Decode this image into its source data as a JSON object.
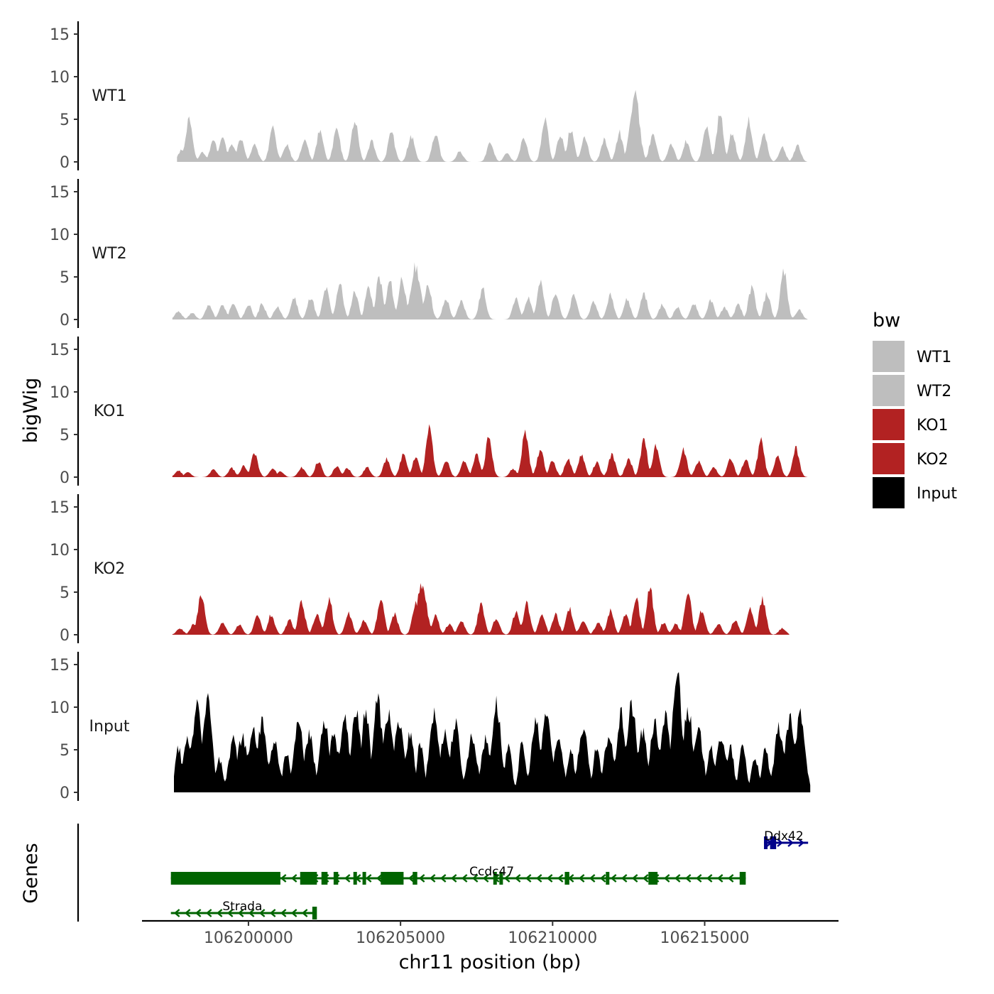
{
  "chart_data": {
    "type": "area",
    "chromosome": "chr11",
    "xlabel": "chr11 position (bp)",
    "ylabel_tracks": "bigWig",
    "ylabel_genes": "Genes",
    "xlim": [
      106196500,
      106219400
    ],
    "x_ticks": [
      106200000,
      106205000,
      106210000,
      106215000
    ],
    "x_tick_labels": [
      "106200000",
      "106205000",
      "106210000",
      "106215000"
    ],
    "ylim": [
      0,
      15.5
    ],
    "y_ticks": [
      0,
      5,
      10,
      15
    ],
    "y_tick_labels": [
      "0",
      "5",
      "10",
      "15"
    ],
    "legend": {
      "title": "bw",
      "entries": [
        {
          "label": "WT1",
          "color": "#bebebe"
        },
        {
          "label": "WT2",
          "color": "#bebebe"
        },
        {
          "label": "KO1",
          "color": "#b22222"
        },
        {
          "label": "KO2",
          "color": "#b22222"
        },
        {
          "label": "Input",
          "color": "#000000"
        }
      ]
    },
    "series": [
      {
        "name": "WT1",
        "color": "#bebebe",
        "start": 106197650,
        "end": 106218400,
        "peaks": [
          [
            106197800,
            1.5
          ],
          [
            106198050,
            5.2
          ],
          [
            106198500,
            1.2
          ],
          [
            106198850,
            2.8
          ],
          [
            106199150,
            3.0
          ],
          [
            106199450,
            2.3
          ],
          [
            106199750,
            3.0
          ],
          [
            106200200,
            2.2
          ],
          [
            106200800,
            4.1
          ],
          [
            106201250,
            2.2
          ],
          [
            106201850,
            2.8
          ],
          [
            106202350,
            3.8
          ],
          [
            106202900,
            4.0
          ],
          [
            106203500,
            5.1
          ],
          [
            106204050,
            2.5
          ],
          [
            106204700,
            3.6
          ],
          [
            106205350,
            3.2
          ],
          [
            106206150,
            3.5
          ],
          [
            106206950,
            1.3
          ],
          [
            106207950,
            2.3
          ],
          [
            106208500,
            1.0
          ],
          [
            106209050,
            3.0
          ],
          [
            106209750,
            5.2
          ],
          [
            106210250,
            3.3
          ],
          [
            106210600,
            4.0
          ],
          [
            106211050,
            3.1
          ],
          [
            106211700,
            2.7
          ],
          [
            106212200,
            3.6
          ],
          [
            106212700,
            8.5
          ],
          [
            106213300,
            3.5
          ],
          [
            106213900,
            2.1
          ],
          [
            106214400,
            2.6
          ],
          [
            106215050,
            4.5
          ],
          [
            106215500,
            5.9
          ],
          [
            106215900,
            3.5
          ],
          [
            106216450,
            5.2
          ],
          [
            106216950,
            3.5
          ],
          [
            106217550,
            1.8
          ],
          [
            106218050,
            2.0
          ]
        ]
      },
      {
        "name": "WT2",
        "color": "#bebebe",
        "start": 106197500,
        "end": 106218400,
        "peaks": [
          [
            106197700,
            1.0
          ],
          [
            106198150,
            0.8
          ],
          [
            106198700,
            1.8
          ],
          [
            106199150,
            1.8
          ],
          [
            106199500,
            2.0
          ],
          [
            106200000,
            1.8
          ],
          [
            106200450,
            1.9
          ],
          [
            106200950,
            1.6
          ],
          [
            106201500,
            2.7
          ],
          [
            106202050,
            2.8
          ],
          [
            106202550,
            3.8
          ],
          [
            106203000,
            4.5
          ],
          [
            106203500,
            3.5
          ],
          [
            106203950,
            4.0
          ],
          [
            106204300,
            5.2
          ],
          [
            106204650,
            4.7
          ],
          [
            106205050,
            5.2
          ],
          [
            106205500,
            6.5
          ],
          [
            106205900,
            4.5
          ],
          [
            106206500,
            2.5
          ],
          [
            106207000,
            2.3
          ],
          [
            106207700,
            3.8
          ],
          [
            106208800,
            2.5
          ],
          [
            106209200,
            2.8
          ],
          [
            106209600,
            4.5
          ],
          [
            106210100,
            3.5
          ],
          [
            106210700,
            3.0
          ],
          [
            106211350,
            2.2
          ],
          [
            106211900,
            3.0
          ],
          [
            106212450,
            2.5
          ],
          [
            106213000,
            3.3
          ],
          [
            106213600,
            1.8
          ],
          [
            106214100,
            1.5
          ],
          [
            106214650,
            2.0
          ],
          [
            106215200,
            2.3
          ],
          [
            106215650,
            1.5
          ],
          [
            106216100,
            1.8
          ],
          [
            106216550,
            4.0
          ],
          [
            106217050,
            3.2
          ],
          [
            106217600,
            6.0
          ],
          [
            106218100,
            1.2
          ]
        ]
      },
      {
        "name": "KO1",
        "color": "#b22222",
        "start": 106197500,
        "end": 106218400,
        "peaks": [
          [
            106197700,
            0.8
          ],
          [
            106198000,
            0.6
          ],
          [
            106198850,
            0.9
          ],
          [
            106199450,
            1.1
          ],
          [
            106199850,
            1.4
          ],
          [
            106200200,
            3.0
          ],
          [
            106200800,
            1.0
          ],
          [
            106201050,
            0.7
          ],
          [
            106201750,
            1.2
          ],
          [
            106202300,
            1.9
          ],
          [
            106202900,
            1.3
          ],
          [
            106203250,
            1.1
          ],
          [
            106203900,
            1.2
          ],
          [
            106204550,
            2.3
          ],
          [
            106205100,
            3.0
          ],
          [
            106205500,
            2.5
          ],
          [
            106205950,
            6.0
          ],
          [
            106206500,
            2.0
          ],
          [
            106207100,
            2.1
          ],
          [
            106207500,
            2.8
          ],
          [
            106207900,
            4.8
          ],
          [
            106208700,
            1.0
          ],
          [
            106209100,
            5.5
          ],
          [
            106209600,
            3.5
          ],
          [
            106210000,
            2.0
          ],
          [
            106210500,
            2.2
          ],
          [
            106210950,
            2.8
          ],
          [
            106211450,
            1.8
          ],
          [
            106211950,
            2.8
          ],
          [
            106212500,
            2.3
          ],
          [
            106213000,
            4.5
          ],
          [
            106213400,
            3.8
          ],
          [
            106214300,
            3.5
          ],
          [
            106214800,
            2.0
          ],
          [
            106215300,
            1.2
          ],
          [
            106215850,
            2.3
          ],
          [
            106216350,
            2.2
          ],
          [
            106216850,
            4.5
          ],
          [
            106217400,
            2.5
          ],
          [
            106218000,
            3.5
          ]
        ]
      },
      {
        "name": "KO2",
        "color": "#b22222",
        "start": 106197500,
        "end": 106217800,
        "peaks": [
          [
            106197750,
            0.8
          ],
          [
            106198200,
            1.3
          ],
          [
            106198450,
            5.2
          ],
          [
            106199150,
            1.5
          ],
          [
            106199700,
            1.2
          ],
          [
            106200300,
            2.3
          ],
          [
            106200750,
            2.5
          ],
          [
            106201350,
            1.8
          ],
          [
            106201750,
            4.0
          ],
          [
            106202250,
            2.7
          ],
          [
            106202650,
            4.5
          ],
          [
            106203300,
            2.6
          ],
          [
            106203800,
            1.8
          ],
          [
            106204350,
            4.5
          ],
          [
            106204800,
            2.6
          ],
          [
            106205500,
            3.9
          ],
          [
            106205700,
            6.3
          ],
          [
            106206150,
            2.3
          ],
          [
            106206600,
            1.3
          ],
          [
            106207000,
            1.8
          ],
          [
            106207650,
            3.8
          ],
          [
            106208150,
            2.0
          ],
          [
            106208800,
            2.8
          ],
          [
            106209150,
            3.8
          ],
          [
            106209650,
            2.5
          ],
          [
            106210100,
            2.5
          ],
          [
            106210550,
            3.2
          ],
          [
            106211000,
            1.8
          ],
          [
            106211500,
            1.5
          ],
          [
            106211900,
            3.0
          ],
          [
            106212400,
            2.5
          ],
          [
            106212750,
            4.5
          ],
          [
            106213200,
            5.8
          ],
          [
            106213650,
            1.5
          ],
          [
            106214050,
            1.3
          ],
          [
            106214450,
            5.3
          ],
          [
            106214900,
            3.0
          ],
          [
            106215450,
            1.3
          ],
          [
            106216000,
            1.8
          ],
          [
            106216500,
            3.2
          ],
          [
            106216900,
            4.5
          ],
          [
            106217550,
            0.8
          ]
        ]
      },
      {
        "name": "Input",
        "color": "#000000",
        "start": 106197550,
        "end": 106218500,
        "peaks": [
          [
            106197700,
            5.5
          ],
          [
            106198000,
            6.8
          ],
          [
            106198300,
            10.5
          ],
          [
            106198650,
            11.8
          ],
          [
            106199050,
            4.0
          ],
          [
            106199500,
            6.5
          ],
          [
            106199800,
            7.0
          ],
          [
            106200150,
            8.0
          ],
          [
            106200450,
            8.5
          ],
          [
            106200850,
            6.5
          ],
          [
            106201250,
            4.8
          ],
          [
            106201650,
            8.5
          ],
          [
            106202000,
            7.0
          ],
          [
            106202500,
            9.2
          ],
          [
            106202800,
            7.5
          ],
          [
            106203150,
            9.0
          ],
          [
            106203550,
            10.2
          ],
          [
            106203850,
            9.5
          ],
          [
            106204250,
            11.5
          ],
          [
            106204600,
            10.0
          ],
          [
            106204950,
            8.5
          ],
          [
            106205300,
            7.0
          ],
          [
            106205650,
            6.0
          ],
          [
            106206100,
            9.8
          ],
          [
            106206450,
            7.5
          ],
          [
            106206800,
            8.5
          ],
          [
            106207350,
            7.0
          ],
          [
            106207800,
            6.5
          ],
          [
            106208150,
            11.0
          ],
          [
            106208550,
            5.5
          ],
          [
            106209000,
            6.0
          ],
          [
            106209450,
            8.5
          ],
          [
            106209800,
            10.0
          ],
          [
            106210200,
            6.5
          ],
          [
            106210600,
            5.5
          ],
          [
            106211000,
            8.0
          ],
          [
            106211450,
            5.5
          ],
          [
            106211850,
            7.0
          ],
          [
            106212250,
            9.5
          ],
          [
            106212600,
            10.8
          ],
          [
            106212950,
            7.5
          ],
          [
            106213350,
            8.5
          ],
          [
            106213700,
            9.5
          ],
          [
            106214100,
            15.0
          ],
          [
            106214450,
            10.5
          ],
          [
            106214800,
            7.5
          ],
          [
            106215200,
            6.0
          ],
          [
            106215550,
            7.0
          ],
          [
            106215850,
            5.5
          ],
          [
            106216250,
            6.0
          ],
          [
            106216650,
            4.5
          ],
          [
            106217000,
            5.5
          ],
          [
            106217450,
            8.0
          ],
          [
            106217800,
            9.0
          ],
          [
            106218150,
            10.0
          ]
        ]
      }
    ],
    "genes": [
      {
        "name": "Ddx42",
        "strand": "+",
        "color": "#00008b",
        "row": 0,
        "start": 106216950,
        "end": 106218400,
        "label_pos": 106217600,
        "exons": [
          [
            106216950,
            106217050
          ],
          [
            106217150,
            106217350
          ]
        ]
      },
      {
        "name": "Ccdc47",
        "strand": "-",
        "color": "#006400",
        "row": 1,
        "start": 106197450,
        "end": 106216350,
        "label_pos": 106208000,
        "exons": [
          [
            106197450,
            106201050
          ],
          [
            106201700,
            106202250
          ],
          [
            106202400,
            106202600
          ],
          [
            106202800,
            106202950
          ],
          [
            106203450,
            106203550
          ],
          [
            106203750,
            106203850
          ],
          [
            106204350,
            106205100
          ],
          [
            106205400,
            106205550
          ],
          [
            106208050,
            106208150
          ],
          [
            106208250,
            106208350
          ],
          [
            106210400,
            106210550
          ],
          [
            106211750,
            106211850
          ],
          [
            106213150,
            106213450
          ],
          [
            106216150,
            106216350
          ]
        ]
      },
      {
        "name": "Strada",
        "strand": "-",
        "color": "#006400",
        "row": 2,
        "start": 106197450,
        "end": 106202200,
        "label_pos": 106199800,
        "exons": [
          [
            106202100,
            106202250
          ]
        ]
      }
    ]
  }
}
